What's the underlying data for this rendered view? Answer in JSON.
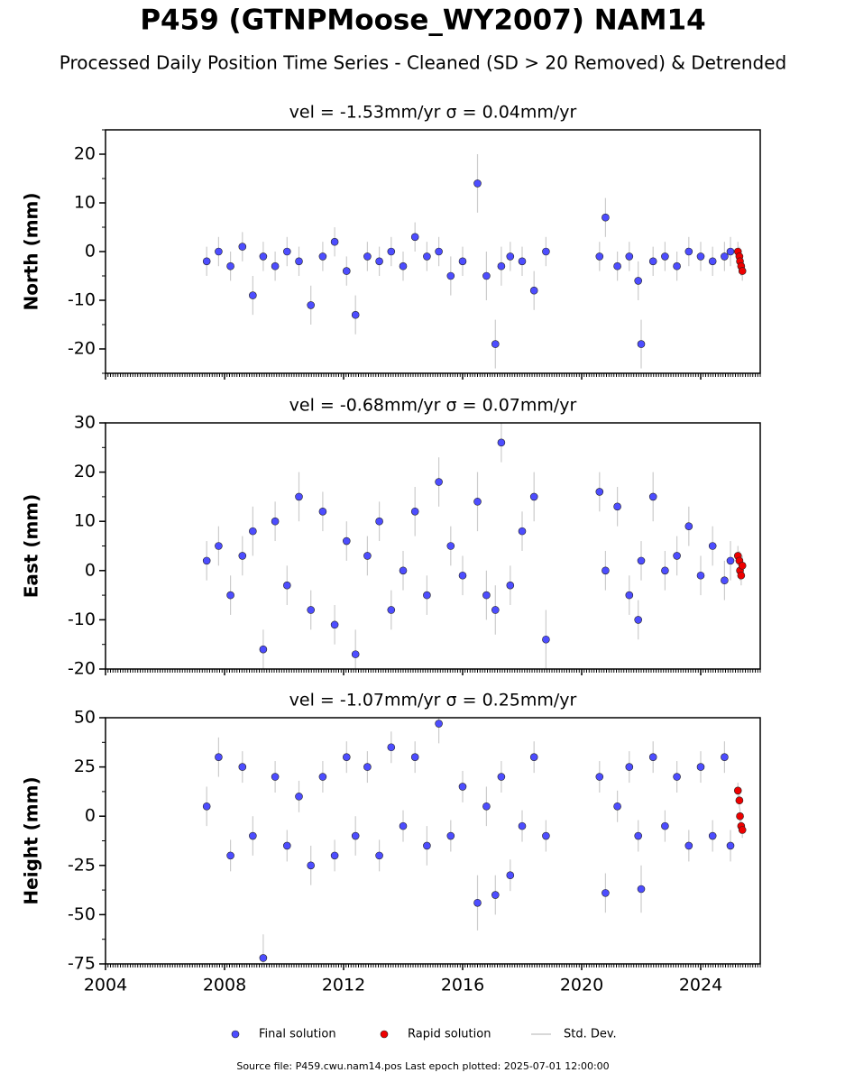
{
  "title": "P459 (GTNPMoose_WY2007) NAM14",
  "subtitle": "Processed Daily Position Time Series - Cleaned (SD > 20 Removed) & Detrended",
  "legend": [
    {
      "name": "Final solution",
      "color": "#4d4dff"
    },
    {
      "name": "Rapid solution",
      "color": "#ee0000"
    },
    {
      "name": "Std. Dev.",
      "color": "#cccccc"
    }
  ],
  "footer": "Source file: P459.cwu.nam14.pos  Last epoch plotted: 2025-07-01 12:00:00",
  "chart_data": [
    {
      "type": "scatter",
      "title": "vel = -1.53mm/yr   σ = 0.04mm/yr",
      "y_label": "North (mm)",
      "xlim": [
        2004,
        2026
      ],
      "xticks": [
        2004,
        2008,
        2012,
        2016,
        2020,
        2024
      ],
      "ylim": [
        -25,
        25
      ],
      "yticks": [
        -20,
        -10,
        0,
        10,
        20
      ],
      "series": [
        {
          "color": "#4d4dff",
          "x": [
            2007.4,
            2007.8,
            2008.2,
            2008.6,
            2008.95,
            2009.3,
            2009.7,
            2010.1,
            2010.5,
            2010.9,
            2011.3,
            2011.7,
            2012.1,
            2012.4,
            2012.8,
            2013.2,
            2013.6,
            2014.0,
            2014.4,
            2014.8,
            2015.2,
            2015.6,
            2016.0,
            2016.5,
            2016.8,
            2017.1,
            2017.3,
            2017.6,
            2018.0,
            2018.4,
            2018.8,
            2020.6,
            2020.8,
            2021.2,
            2021.6,
            2021.9,
            2022.0,
            2022.4,
            2022.8,
            2023.2,
            2023.6,
            2024.0,
            2024.4,
            2024.8,
            2025.0
          ],
          "values": [
            -2,
            0,
            -3,
            1,
            -9,
            -1,
            -3,
            0,
            -2,
            -11,
            -1,
            2,
            -4,
            -13,
            -1,
            -2,
            0,
            -3,
            3,
            -1,
            0,
            -5,
            -2,
            14,
            -5,
            -19,
            -3,
            -1,
            -2,
            -8,
            0,
            -1,
            7,
            -3,
            -1,
            -6,
            -19,
            -2,
            -1,
            -3,
            0,
            -1,
            -2,
            -1,
            0
          ],
          "errors": [
            3,
            3,
            3,
            3,
            4,
            3,
            3,
            3,
            3,
            4,
            3,
            3,
            3,
            4,
            3,
            3,
            3,
            3,
            3,
            3,
            3,
            4,
            3,
            6,
            5,
            5,
            4,
            3,
            3,
            4,
            3,
            3,
            4,
            3,
            3,
            4,
            5,
            3,
            3,
            3,
            3,
            3,
            3,
            3,
            3
          ]
        },
        {
          "color": "#ee0000",
          "x": [
            2025.25,
            2025.3,
            2025.32,
            2025.36,
            2025.4
          ],
          "values": [
            0,
            -1,
            -2,
            -3,
            -4
          ],
          "errors": [
            2,
            2,
            2,
            2,
            2
          ]
        }
      ]
    },
    {
      "type": "scatter",
      "title": "vel = -0.68mm/yr   σ = 0.07mm/yr",
      "y_label": "East (mm)",
      "xlim": [
        2004,
        2026
      ],
      "xticks": [
        2004,
        2008,
        2012,
        2016,
        2020,
        2024
      ],
      "ylim": [
        -20,
        30
      ],
      "yticks": [
        -20,
        -10,
        0,
        10,
        20,
        30
      ],
      "series": [
        {
          "color": "#4d4dff",
          "x": [
            2007.4,
            2007.8,
            2008.2,
            2008.6,
            2008.95,
            2009.3,
            2009.7,
            2010.1,
            2010.5,
            2010.9,
            2011.3,
            2011.7,
            2012.1,
            2012.4,
            2012.8,
            2013.2,
            2013.6,
            2014.0,
            2014.4,
            2014.8,
            2015.2,
            2015.6,
            2016.0,
            2016.5,
            2016.8,
            2017.1,
            2017.3,
            2017.6,
            2018.0,
            2018.4,
            2018.8,
            2020.6,
            2020.8,
            2021.2,
            2021.6,
            2021.9,
            2022.0,
            2022.4,
            2022.8,
            2023.2,
            2023.6,
            2024.0,
            2024.4,
            2024.8,
            2025.0
          ],
          "values": [
            2,
            5,
            -5,
            3,
            8,
            -16,
            10,
            -3,
            15,
            -8,
            12,
            -11,
            6,
            -17,
            3,
            10,
            -8,
            0,
            12,
            -5,
            18,
            5,
            -1,
            14,
            -5,
            -8,
            26,
            -3,
            8,
            15,
            -14,
            16,
            0,
            13,
            -5,
            -10,
            2,
            15,
            0,
            3,
            9,
            -1,
            5,
            -2,
            2
          ],
          "errors": [
            4,
            4,
            4,
            4,
            5,
            4,
            4,
            4,
            5,
            4,
            4,
            4,
            4,
            5,
            4,
            4,
            4,
            4,
            5,
            4,
            5,
            4,
            4,
            6,
            5,
            5,
            4,
            4,
            4,
            5,
            6,
            4,
            4,
            4,
            4,
            4,
            4,
            5,
            4,
            4,
            4,
            4,
            4,
            4,
            4
          ]
        },
        {
          "color": "#ee0000",
          "x": [
            2025.25,
            2025.3,
            2025.32,
            2025.36,
            2025.4
          ],
          "values": [
            3,
            2,
            0,
            -1,
            1
          ],
          "errors": [
            2,
            2,
            2,
            2,
            2
          ]
        }
      ]
    },
    {
      "type": "scatter",
      "title": "vel = -1.07mm/yr   σ = 0.25mm/yr",
      "y_label": "Height (mm)",
      "show_xtick_labels": true,
      "xlim": [
        2004,
        2026
      ],
      "xticks": [
        2004,
        2008,
        2012,
        2016,
        2020,
        2024
      ],
      "ylim": [
        -75,
        50
      ],
      "yticks": [
        -75,
        -50,
        -25,
        0,
        25,
        50
      ],
      "series": [
        {
          "color": "#4d4dff",
          "x": [
            2007.4,
            2007.8,
            2008.2,
            2008.6,
            2008.95,
            2009.3,
            2009.7,
            2010.1,
            2010.5,
            2010.9,
            2011.3,
            2011.7,
            2012.1,
            2012.4,
            2012.8,
            2013.2,
            2013.6,
            2014.0,
            2014.4,
            2014.8,
            2015.2,
            2015.6,
            2016.0,
            2016.5,
            2016.8,
            2017.1,
            2017.3,
            2017.6,
            2018.0,
            2018.4,
            2018.8,
            2020.6,
            2020.8,
            2021.2,
            2021.6,
            2021.9,
            2022.0,
            2022.4,
            2022.8,
            2023.2,
            2023.6,
            2024.0,
            2024.4,
            2024.8,
            2025.0
          ],
          "values": [
            5,
            30,
            -20,
            25,
            -10,
            -72,
            20,
            -15,
            10,
            -25,
            20,
            -20,
            30,
            -10,
            25,
            -20,
            35,
            -5,
            30,
            -15,
            47,
            -10,
            15,
            -44,
            5,
            -40,
            20,
            -30,
            -5,
            30,
            -10,
            20,
            -39,
            5,
            25,
            -10,
            -37,
            30,
            -5,
            20,
            -15,
            25,
            -10,
            30,
            -15
          ],
          "errors": [
            10,
            10,
            8,
            8,
            10,
            12,
            8,
            8,
            8,
            10,
            8,
            8,
            8,
            10,
            8,
            8,
            8,
            8,
            8,
            10,
            10,
            8,
            8,
            14,
            10,
            10,
            8,
            8,
            8,
            8,
            8,
            8,
            10,
            8,
            8,
            8,
            12,
            8,
            8,
            8,
            8,
            8,
            8,
            8,
            8
          ]
        },
        {
          "color": "#ee0000",
          "x": [
            2025.25,
            2025.3,
            2025.32,
            2025.36,
            2025.4
          ],
          "values": [
            13,
            8,
            0,
            -5,
            -7
          ],
          "errors": [
            4,
            4,
            4,
            4,
            4
          ]
        }
      ]
    }
  ]
}
